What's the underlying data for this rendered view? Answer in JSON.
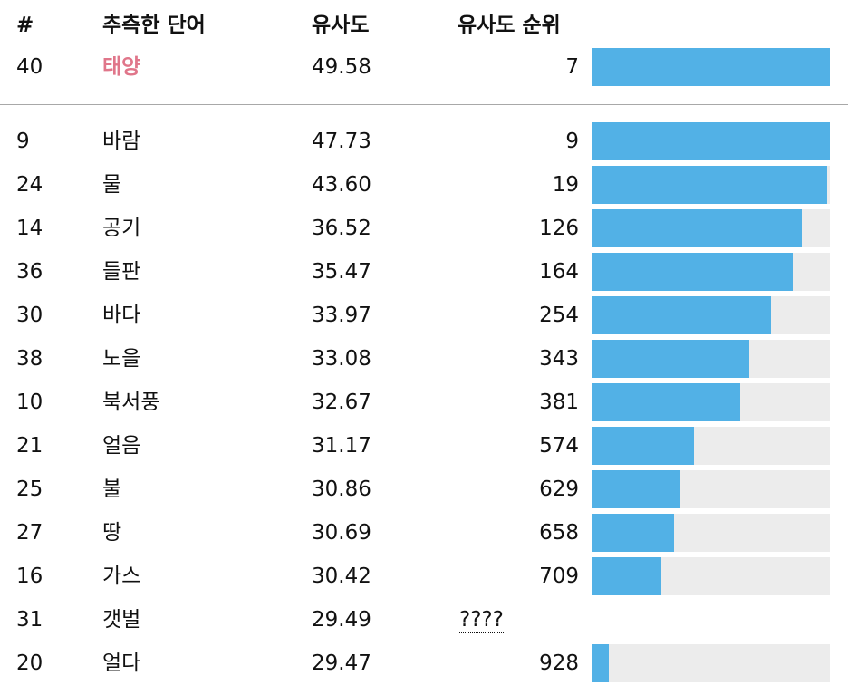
{
  "header": {
    "num": "#",
    "word": "추측한 단어",
    "similarity": "유사도",
    "rank": "유사도 순위"
  },
  "latest": {
    "num": "40",
    "word": "태양",
    "similarity": "49.58",
    "rank": "7",
    "bar_fraction": 1.0,
    "highlight_color": "#e0768a"
  },
  "rows": [
    {
      "num": "9",
      "word": "바람",
      "similarity": "47.73",
      "rank": "9",
      "bar_fraction": 1.0
    },
    {
      "num": "24",
      "word": "물",
      "similarity": "43.60",
      "rank": "19",
      "bar_fraction": 0.989
    },
    {
      "num": "14",
      "word": "공기",
      "similarity": "36.52",
      "rank": "126",
      "bar_fraction": 0.882
    },
    {
      "num": "36",
      "word": "들판",
      "similarity": "35.47",
      "rank": "164",
      "bar_fraction": 0.844
    },
    {
      "num": "30",
      "word": "바다",
      "similarity": "33.97",
      "rank": "254",
      "bar_fraction": 0.753
    },
    {
      "num": "38",
      "word": "노을",
      "similarity": "33.08",
      "rank": "343",
      "bar_fraction": 0.662
    },
    {
      "num": "10",
      "word": "북서풍",
      "similarity": "32.67",
      "rank": "381",
      "bar_fraction": 0.624
    },
    {
      "num": "21",
      "word": "얼음",
      "similarity": "31.17",
      "rank": "574",
      "bar_fraction": 0.43
    },
    {
      "num": "25",
      "word": "불",
      "similarity": "30.86",
      "rank": "629",
      "bar_fraction": 0.373
    },
    {
      "num": "27",
      "word": "땅",
      "similarity": "30.69",
      "rank": "658",
      "bar_fraction": 0.346
    },
    {
      "num": "16",
      "word": "가스",
      "similarity": "30.42",
      "rank": "709",
      "bar_fraction": 0.293
    },
    {
      "num": "31",
      "word": "갯벌",
      "similarity": "29.49",
      "rank": "????",
      "bar_fraction": null
    },
    {
      "num": "20",
      "word": "얼다",
      "similarity": "29.47",
      "rank": "928",
      "bar_fraction": 0.072
    }
  ],
  "colors": {
    "bar_fill": "#52b1e6",
    "bar_track": "#ececec",
    "divider": "#a8a8a8"
  }
}
